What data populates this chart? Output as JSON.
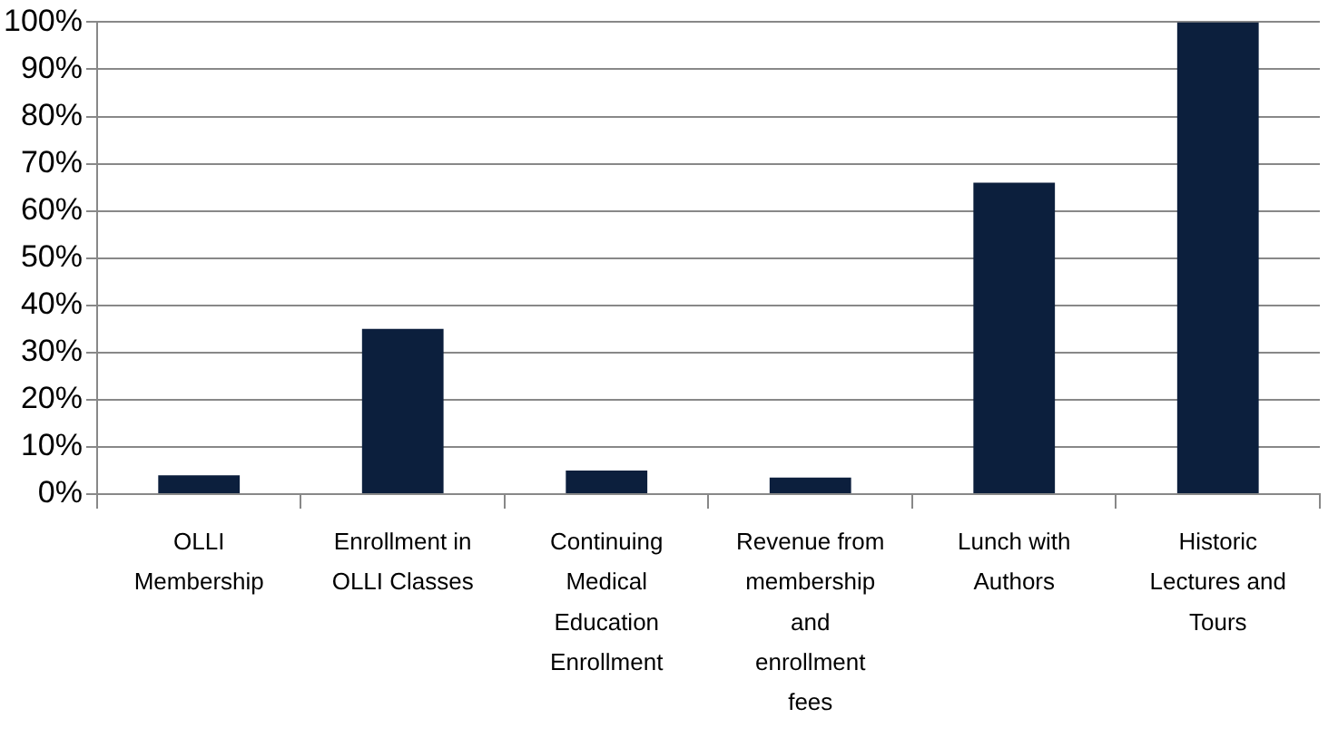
{
  "chart_data": {
    "type": "bar",
    "categories": [
      "OLLI Membership",
      "Enrollment in OLLI Classes",
      "Continuing Medical Education Enrollment",
      "Revenue from membership and enrollment fees",
      "Lunch with Authors",
      "Historic Lectures and Tours"
    ],
    "values": [
      4,
      35,
      5,
      3.5,
      66,
      100
    ],
    "color": "#0c1f3d",
    "ylim": [
      0,
      100
    ],
    "yticks": [
      {
        "value": 0,
        "label": "0%"
      },
      {
        "value": 10,
        "label": "10%"
      },
      {
        "value": 20,
        "label": "20%"
      },
      {
        "value": 30,
        "label": "30%"
      },
      {
        "value": 40,
        "label": "40%"
      },
      {
        "value": 50,
        "label": "50%"
      },
      {
        "value": 60,
        "label": "60%"
      },
      {
        "value": 70,
        "label": "70%"
      },
      {
        "value": 80,
        "label": "80%"
      },
      {
        "value": 90,
        "label": "90%"
      },
      {
        "value": 100,
        "label": "100%"
      }
    ],
    "grid": "y",
    "legend": false
  }
}
